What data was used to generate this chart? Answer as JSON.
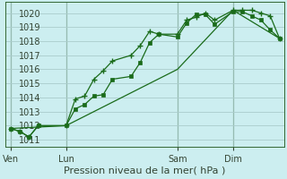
{
  "bg_color": "#cceef0",
  "grid_color": "#aacccc",
  "line_color": "#1a6b1a",
  "xlabel": "Pression niveau de la mer( hPa )",
  "xlabel_fontsize": 8,
  "tick_fontsize": 7,
  "ylim": [
    1010.5,
    1020.8
  ],
  "yticks": [
    1011,
    1012,
    1013,
    1014,
    1015,
    1016,
    1017,
    1018,
    1019,
    1020
  ],
  "x_tick_labels": [
    "Ven",
    "Lun",
    "Sam",
    "Dim"
  ],
  "x_tick_positions": [
    0,
    6,
    18,
    24
  ],
  "xlim": [
    -0.5,
    29.5
  ],
  "series1_x": [
    0,
    1,
    2,
    3,
    6,
    7,
    8,
    9,
    10,
    11,
    13,
    14,
    15,
    16,
    18,
    19,
    20,
    21,
    22,
    24,
    25,
    26,
    27,
    28,
    29
  ],
  "series1_y": [
    1011.8,
    1011.6,
    1011.2,
    1012.0,
    1012.0,
    1013.9,
    1014.1,
    1015.3,
    1015.9,
    1016.6,
    1017.0,
    1017.7,
    1018.7,
    1018.5,
    1018.5,
    1019.5,
    1019.7,
    1020.0,
    1019.5,
    1020.2,
    1020.2,
    1020.2,
    1020.0,
    1019.8,
    1018.2
  ],
  "series2_x": [
    0,
    1,
    2,
    3,
    6,
    7,
    8,
    9,
    10,
    11,
    13,
    14,
    15,
    16,
    18,
    19,
    20,
    21,
    22,
    24,
    25,
    26,
    27,
    28,
    29
  ],
  "series2_y": [
    1011.8,
    1011.6,
    1011.2,
    1012.0,
    1012.0,
    1013.2,
    1013.5,
    1014.1,
    1014.2,
    1015.3,
    1015.5,
    1016.5,
    1017.9,
    1018.5,
    1018.3,
    1019.3,
    1019.9,
    1019.9,
    1019.2,
    1020.1,
    1020.1,
    1019.8,
    1019.5,
    1018.8,
    1018.2
  ],
  "series3_x": [
    0,
    6,
    18,
    24,
    29
  ],
  "series3_y": [
    1011.8,
    1012.0,
    1016.0,
    1020.2,
    1018.2
  ]
}
